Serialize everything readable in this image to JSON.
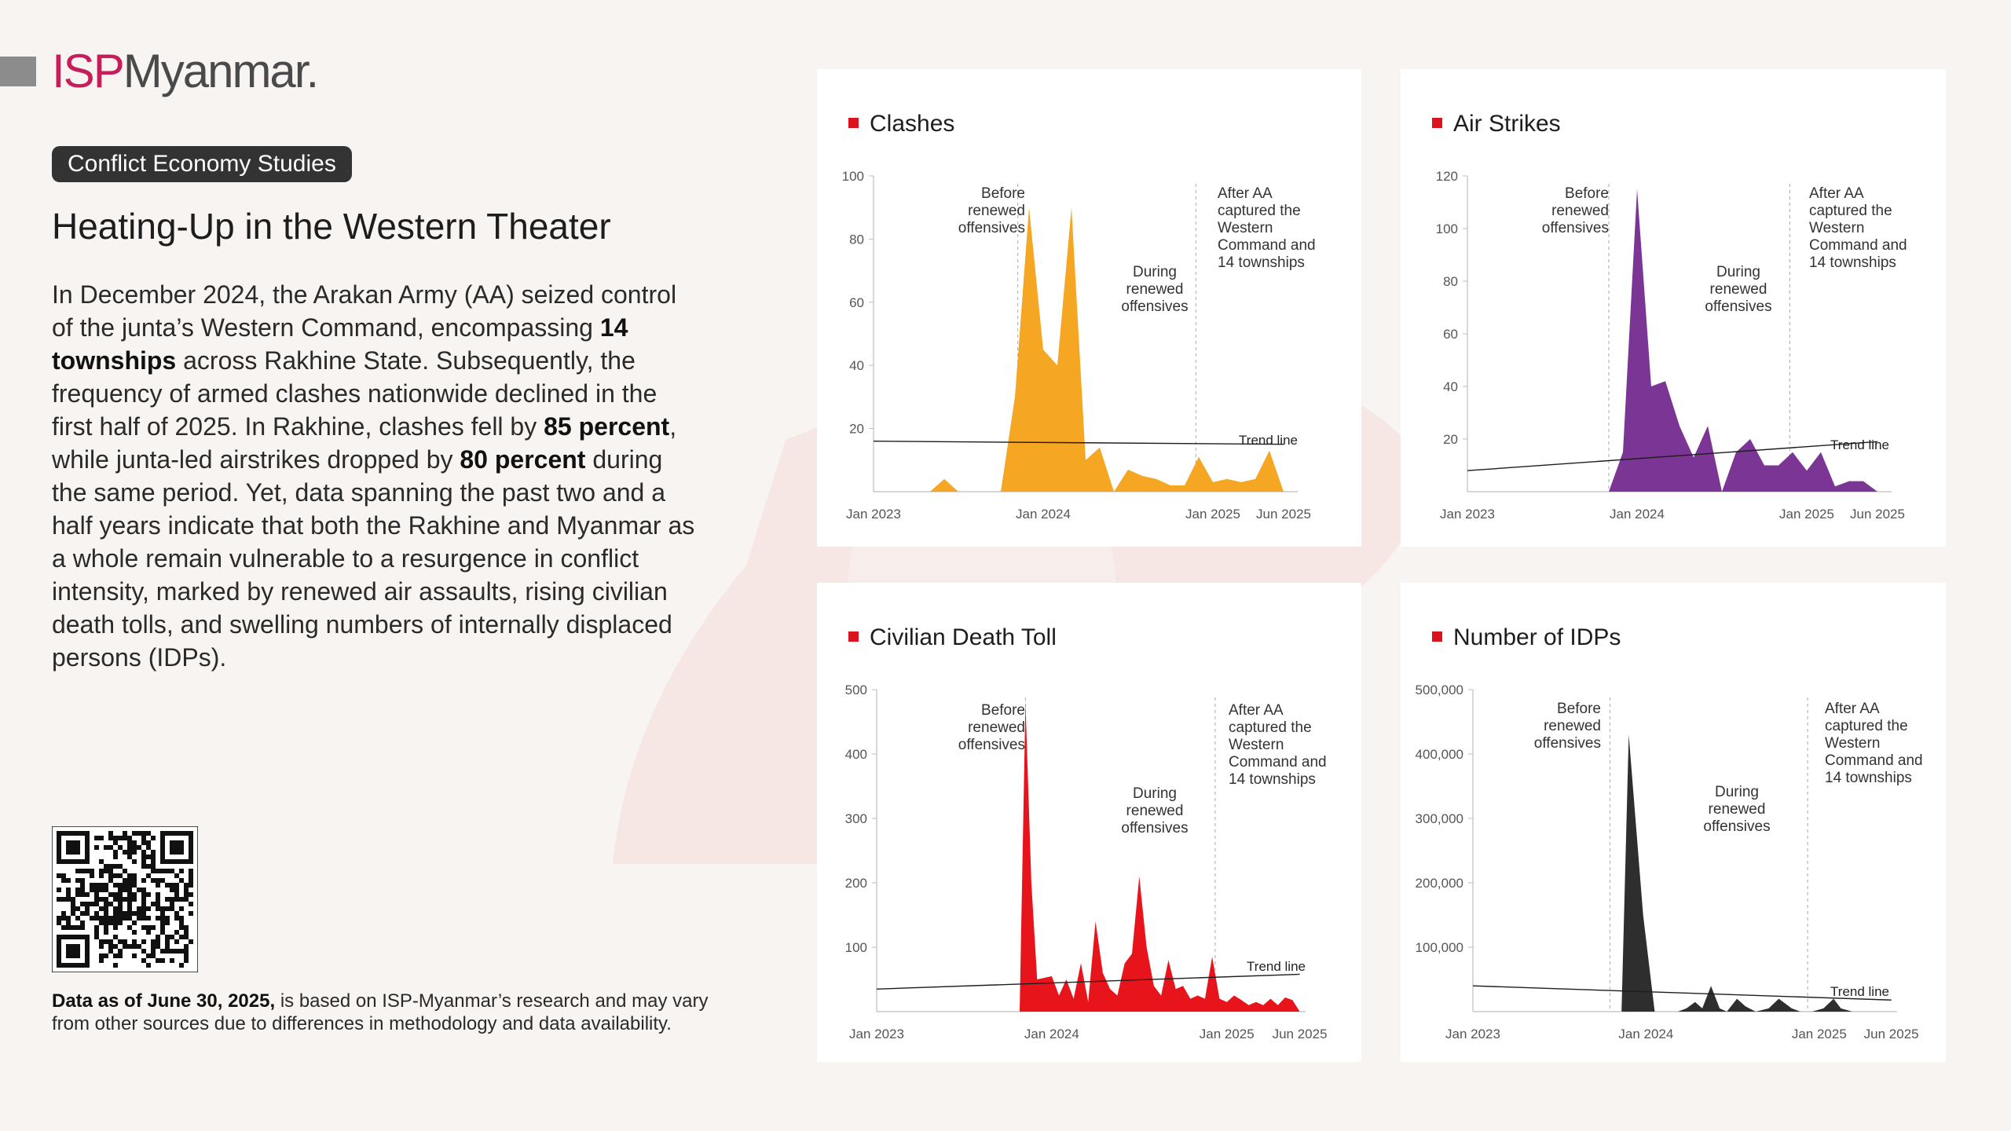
{
  "brand": {
    "isp": "ISP",
    "myanmar": "Myanmar",
    "dot": "."
  },
  "tag": "Conflict Economy Studies",
  "title": "Heating-Up in the Western Theater",
  "intro": {
    "p1": "In December 2024, the Arakan Army (AA) seized control of the junta’s Western Command, encompassing ",
    "b1": "14 townships",
    "p2": " across Rakhine State. Subsequently, the frequency of armed clashes nationwide declined in the first half of 2025. In Rakhine, clashes fell by ",
    "b2": "85 percent",
    "p3": ", while junta-led airstrikes dropped by ",
    "b3": "80 percent",
    "p4": " during the same period. Yet, data spanning the past two and a half years indicate that both the Rakhine and Myanmar as a whole remain vulnerable to a resurgence in conflict intensity, marked by renewed air assaults, rising civilian death tolls, and swelling numbers of internally displaced persons (IDPs)."
  },
  "footnote": {
    "bold": "Data as of June 30, 2025,",
    "rest": " is based on ISP-Myanmar’s research and may vary from other sources due to differences in methodology and data availability."
  },
  "phases": {
    "before": [
      "Before",
      "renewed",
      "offensives"
    ],
    "during": [
      "During",
      "renewed",
      "offensives"
    ],
    "after": [
      "After AA",
      "captured the",
      "Western",
      "Command and",
      "14 townships"
    ]
  },
  "trend_label": "Trend line",
  "accent_marker": "#d9141c",
  "chart_data": [
    {
      "id": "clashes",
      "type": "area",
      "title": "Clashes",
      "color": "#f5a623",
      "xlim": [
        0,
        30
      ],
      "ylim": [
        0,
        100
      ],
      "yticks": [
        20,
        40,
        60,
        80,
        100
      ],
      "ytick_labels": [
        "20",
        "40",
        "60",
        "80",
        "100"
      ],
      "xticks": [
        0,
        12,
        24,
        29
      ],
      "xtick_labels": [
        "Jan 2023",
        "Jan 2024",
        "Jan 2025",
        "Jun 2025"
      ],
      "phase_lines": [
        10.2,
        22.8
      ],
      "x": [
        4,
        5,
        6,
        7,
        8,
        9,
        10,
        11,
        12,
        13,
        14,
        15,
        16,
        17,
        18,
        19,
        20,
        21,
        22,
        23,
        24,
        25,
        26,
        27,
        28,
        29
      ],
      "values": [
        0,
        4,
        0,
        0,
        0,
        0,
        30,
        90,
        45,
        40,
        90,
        10,
        14,
        0,
        7,
        5,
        4,
        2,
        2,
        11,
        3,
        4,
        3,
        4,
        13,
        0
      ],
      "trend": [
        [
          0,
          16
        ],
        [
          29,
          15
        ]
      ]
    },
    {
      "id": "air-strikes",
      "type": "area",
      "title": "Air Strikes",
      "color": "#7b3594",
      "xlim": [
        0,
        30
      ],
      "ylim": [
        0,
        120
      ],
      "yticks": [
        20,
        40,
        60,
        80,
        100,
        120
      ],
      "ytick_labels": [
        "20",
        "40",
        "60",
        "80",
        "100",
        "120"
      ],
      "xticks": [
        0,
        12,
        24,
        29
      ],
      "xtick_labels": [
        "Jan 2023",
        "Jan 2024",
        "Jan 2025",
        "Jun 2025"
      ],
      "phase_lines": [
        10.0,
        22.8
      ],
      "x": [
        9,
        10,
        11,
        12,
        13,
        14,
        15,
        16,
        17,
        18,
        19,
        20,
        21,
        22,
        23,
        24,
        25,
        26,
        27,
        28,
        29
      ],
      "values": [
        0,
        0,
        15,
        115,
        40,
        42,
        25,
        13,
        25,
        0,
        15,
        20,
        10,
        10,
        15,
        8,
        15,
        2,
        4,
        4,
        0
      ],
      "trend": [
        [
          0,
          8
        ],
        [
          29,
          19
        ]
      ]
    },
    {
      "id": "civilian-death-toll",
      "type": "area",
      "title": "Civilian Death Toll",
      "color": "#e8141c",
      "xlim": [
        0,
        29.4
      ],
      "ylim": [
        0,
        500
      ],
      "yticks": [
        100,
        200,
        300,
        400,
        500
      ],
      "ytick_labels": [
        "100",
        "200",
        "300",
        "400",
        "500"
      ],
      "xticks": [
        0,
        12,
        24,
        29
      ],
      "xtick_labels": [
        "Jan 2023",
        "Jan 2024",
        "Jan 2025",
        "Jun 2025"
      ],
      "phase_lines": [
        10.2,
        23.2
      ],
      "x": [
        9,
        9.8,
        10.2,
        10.6,
        11,
        12,
        12.5,
        13,
        13.5,
        14,
        14.5,
        15,
        15.5,
        16,
        16.5,
        17,
        17.5,
        18,
        18.5,
        19,
        19.5,
        20,
        20.5,
        21,
        21.5,
        22,
        22.5,
        23,
        23.5,
        24,
        24.5,
        25,
        25.5,
        26,
        26.5,
        27,
        27.5,
        28,
        28.5,
        29
      ],
      "values": [
        0,
        0,
        480,
        200,
        50,
        55,
        25,
        50,
        20,
        75,
        15,
        140,
        60,
        35,
        25,
        75,
        90,
        210,
        100,
        40,
        25,
        80,
        35,
        40,
        20,
        25,
        20,
        85,
        20,
        15,
        25,
        18,
        10,
        15,
        10,
        20,
        10,
        22,
        18,
        0
      ],
      "trend": [
        [
          0,
          35
        ],
        [
          29,
          58
        ]
      ]
    },
    {
      "id": "idps",
      "type": "area",
      "title": "Number of IDPs",
      "color": "#2e2e2e",
      "xlim": [
        0,
        29.4
      ],
      "ylim": [
        0,
        500000
      ],
      "yticks": [
        100000,
        200000,
        300000,
        400000,
        500000
      ],
      "ytick_labels": [
        "100,000",
        "200,000",
        "300,000",
        "400,000",
        "500,000"
      ],
      "xticks": [
        0,
        12,
        24,
        29
      ],
      "xtick_labels": [
        "Jan 2023",
        "Jan 2024",
        "Jan 2025",
        "Jun 2025"
      ],
      "phase_lines": [
        9.5,
        23.2
      ],
      "x": [
        9.5,
        10.3,
        10.8,
        11.8,
        12.6,
        14.2,
        14.8,
        15.4,
        15.9,
        16.5,
        17.1,
        17.6,
        18.3,
        18.9,
        19.6,
        20.5,
        21.2,
        22.1,
        22.7,
        23.5,
        24.3,
        25,
        25.5,
        26.3,
        26.8
      ],
      "values": [
        0,
        0,
        430000,
        150000,
        0,
        0,
        5000,
        15000,
        5000,
        40000,
        5000,
        0,
        20000,
        8000,
        0,
        5000,
        20000,
        5000,
        0,
        0,
        5000,
        20000,
        5000,
        0,
        0
      ],
      "trend": [
        [
          0,
          40000
        ],
        [
          29,
          18000
        ]
      ]
    }
  ]
}
